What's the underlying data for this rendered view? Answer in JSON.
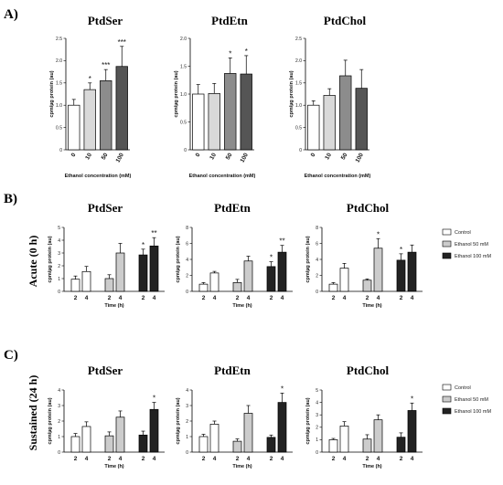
{
  "panels": [
    {
      "label": "A)",
      "side_label": ""
    },
    {
      "label": "B)",
      "side_label": "Acute (0 h)"
    },
    {
      "label": "C)",
      "side_label": "Sustained (24 h)"
    }
  ],
  "legend": {
    "entries": [
      {
        "name": "Control",
        "color": "#ffffff"
      },
      {
        "name": "Ethanol 50 mM",
        "color": "#cccccc"
      },
      {
        "name": "Ethanol 100 mM",
        "color": "#222222"
      }
    ]
  },
  "colors": {
    "A": [
      "#ffffff",
      "#d9d9d9",
      "#8c8c8c",
      "#555555"
    ]
  },
  "chart_data": [
    {
      "panel": "A",
      "type": "bar",
      "title": "PtdSer",
      "xlabel": "Ethanol concentration (mM)",
      "ylabel": "cpm/µg protein (au)",
      "categories": [
        "0",
        "10",
        "50",
        "100"
      ],
      "values": [
        1.0,
        1.35,
        1.55,
        1.87
      ],
      "errors": [
        0.13,
        0.15,
        0.25,
        0.45
      ],
      "stars": [
        "",
        "*",
        "***",
        "***"
      ],
      "ylim": [
        0,
        2.5
      ],
      "yticks": [
        0,
        0.5,
        1.0,
        1.5,
        2.0,
        2.5
      ]
    },
    {
      "panel": "A",
      "type": "bar",
      "title": "PtdEtn",
      "xlabel": "Ethanol concentration (mM)",
      "ylabel": "cpm/µg protein (au)",
      "categories": [
        "0",
        "10",
        "50",
        "100"
      ],
      "values": [
        1.0,
        1.01,
        1.37,
        1.36
      ],
      "errors": [
        0.17,
        0.18,
        0.28,
        0.33
      ],
      "stars": [
        "",
        "",
        "*",
        "*"
      ],
      "ylim": [
        0,
        2.0
      ],
      "yticks": [
        0,
        0.5,
        1.0,
        1.5,
        2.0
      ]
    },
    {
      "panel": "A",
      "type": "bar",
      "title": "PtdChol",
      "xlabel": "Ethanol concentration (mM)",
      "ylabel": "cpm/µg protein (au)",
      "categories": [
        "0",
        "10",
        "50",
        "100"
      ],
      "values": [
        1.0,
        1.22,
        1.66,
        1.38
      ],
      "errors": [
        0.1,
        0.15,
        0.35,
        0.42
      ],
      "stars": [
        "",
        "",
        "",
        ""
      ],
      "ylim": [
        0,
        2.5
      ],
      "yticks": [
        0,
        0.5,
        1.0,
        1.5,
        2.0,
        2.5
      ]
    },
    {
      "panel": "B",
      "type": "bar",
      "title": "PtdSer",
      "xlabel": "Time (h)",
      "ylabel": "cpm/µg protein (au)",
      "categories": [
        "2",
        "4",
        "2",
        "4",
        "2",
        "4"
      ],
      "group_series": [
        0,
        0,
        1,
        1,
        2,
        2
      ],
      "values": [
        0.95,
        1.55,
        1.0,
        3.0,
        2.85,
        3.55
      ],
      "errors": [
        0.25,
        0.4,
        0.3,
        0.75,
        0.45,
        0.65
      ],
      "stars": [
        "",
        "",
        "",
        "",
        "*",
        "**"
      ],
      "ylim": [
        0,
        5
      ],
      "yticks": [
        0,
        1,
        2,
        3,
        4,
        5
      ]
    },
    {
      "panel": "B",
      "type": "bar",
      "title": "PtdEtn",
      "xlabel": "Time (h)",
      "ylabel": "cpm/µg protein (au)",
      "categories": [
        "2",
        "4",
        "2",
        "4",
        "2",
        "4"
      ],
      "group_series": [
        0,
        0,
        1,
        1,
        2,
        2
      ],
      "values": [
        0.9,
        2.3,
        1.1,
        3.8,
        3.1,
        4.9
      ],
      "errors": [
        0.2,
        0.2,
        0.4,
        0.6,
        0.6,
        0.85
      ],
      "stars": [
        "",
        "",
        "",
        "",
        "*",
        "**"
      ],
      "ylim": [
        0,
        8
      ],
      "yticks": [
        0,
        2,
        4,
        6,
        8
      ]
    },
    {
      "panel": "B",
      "type": "bar",
      "title": "PtdChol",
      "xlabel": "Time (h)",
      "ylabel": "cpm/µg protein (au)",
      "categories": [
        "2",
        "4",
        "2",
        "4",
        "2",
        "4"
      ],
      "group_series": [
        0,
        0,
        1,
        1,
        2,
        2
      ],
      "values": [
        0.9,
        2.9,
        1.4,
        5.4,
        3.9,
        4.9
      ],
      "errors": [
        0.2,
        0.6,
        0.15,
        1.2,
        0.8,
        0.9
      ],
      "stars": [
        "",
        "",
        "",
        "*",
        "*",
        ""
      ],
      "ylim": [
        0,
        8
      ],
      "yticks": [
        0,
        2,
        4,
        6,
        8
      ]
    },
    {
      "panel": "C",
      "type": "bar",
      "title": "PtdSer",
      "xlabel": "Time (h)",
      "ylabel": "cpm/µg protein (au)",
      "categories": [
        "2",
        "4",
        "2",
        "4",
        "2",
        "4"
      ],
      "group_series": [
        0,
        0,
        1,
        1,
        2,
        2
      ],
      "values": [
        1.0,
        1.65,
        1.05,
        2.25,
        1.1,
        2.75
      ],
      "errors": [
        0.2,
        0.3,
        0.25,
        0.4,
        0.25,
        0.45
      ],
      "stars": [
        "",
        "",
        "",
        "",
        "",
        "*"
      ],
      "ylim": [
        0,
        4
      ],
      "yticks": [
        0,
        1,
        2,
        3,
        4
      ]
    },
    {
      "panel": "C",
      "type": "bar",
      "title": "PtdEtn",
      "xlabel": "Time (h)",
      "ylabel": "cpm/µg protein (au)",
      "categories": [
        "2",
        "4",
        "2",
        "4",
        "2",
        "4"
      ],
      "group_series": [
        0,
        0,
        1,
        1,
        2,
        2
      ],
      "values": [
        1.0,
        1.8,
        0.7,
        2.5,
        0.95,
        3.2
      ],
      "errors": [
        0.15,
        0.2,
        0.15,
        0.5,
        0.15,
        0.6
      ],
      "stars": [
        "",
        "",
        "",
        "",
        "",
        "*"
      ],
      "ylim": [
        0,
        4
      ],
      "yticks": [
        0,
        1,
        2,
        3,
        4
      ]
    },
    {
      "panel": "C",
      "type": "bar",
      "title": "PtdChol",
      "xlabel": "Time (h)",
      "ylabel": "cpm/µg protein (au)",
      "categories": [
        "2",
        "4",
        "2",
        "4",
        "2",
        "4"
      ],
      "group_series": [
        0,
        0,
        1,
        1,
        2,
        2
      ],
      "values": [
        1.0,
        2.1,
        1.05,
        2.6,
        1.2,
        3.35
      ],
      "errors": [
        0.1,
        0.35,
        0.35,
        0.4,
        0.35,
        0.6
      ],
      "stars": [
        "",
        "",
        "",
        "",
        "",
        "*"
      ],
      "ylim": [
        0,
        5
      ],
      "yticks": [
        0,
        1,
        2,
        3,
        4,
        5
      ]
    }
  ]
}
